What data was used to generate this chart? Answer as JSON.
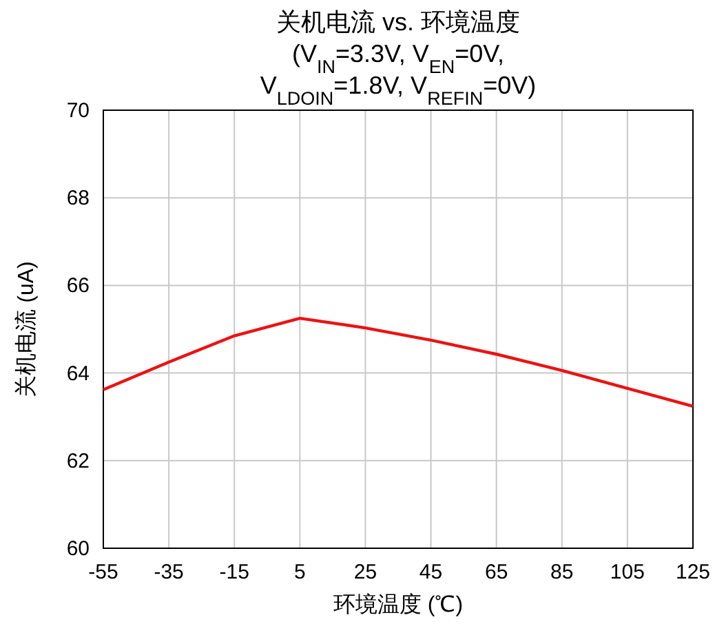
{
  "chart_data": {
    "type": "line",
    "title": "关机电流 vs. 环境温度\n(V$_{IN}$=3.3V, V$_{EN}$=0V,\nV$_{LDOIN}$=1.8V, V$_{REFIN}$=0V)",
    "xlabel": "环境温度 (℃)",
    "ylabel": "关机电流 (uA)",
    "x": [
      -55,
      -35,
      -15,
      5,
      25,
      45,
      65,
      85,
      105,
      125
    ],
    "series": [
      {
        "color": "#ee1111",
        "values": [
          63.62,
          64.25,
          64.85,
          65.25,
          65.03,
          64.75,
          64.43,
          64.06,
          63.65,
          63.24
        ]
      }
    ],
    "xlim": [
      -55,
      125
    ],
    "ylim": [
      60,
      70
    ],
    "xticks": [
      -55,
      -35,
      -15,
      5,
      25,
      45,
      65,
      85,
      105,
      125
    ],
    "yticks": [
      60,
      62,
      64,
      66,
      68,
      70
    ],
    "grid": true
  }
}
